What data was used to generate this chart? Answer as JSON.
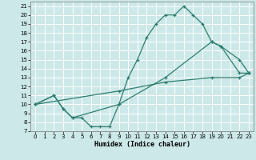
{
  "xlabel": "Humidex (Indice chaleur)",
  "background_color": "#cce8e8",
  "grid_color": "#ffffff",
  "line_color": "#2d7d6e",
  "xlim": [
    -0.5,
    23.5
  ],
  "ylim": [
    7,
    21.5
  ],
  "xticks": [
    0,
    1,
    2,
    3,
    4,
    5,
    6,
    7,
    8,
    9,
    10,
    11,
    12,
    13,
    14,
    15,
    16,
    17,
    18,
    19,
    20,
    21,
    22,
    23
  ],
  "yticks": [
    7,
    8,
    9,
    10,
    11,
    12,
    13,
    14,
    15,
    16,
    17,
    18,
    19,
    20,
    21
  ],
  "line1_x": [
    0,
    2,
    3,
    4,
    5,
    6,
    7,
    8,
    9,
    10,
    11,
    12,
    13,
    14,
    15,
    16,
    17,
    18,
    19,
    20,
    22,
    23
  ],
  "line1_y": [
    10,
    11,
    9.5,
    8.5,
    8.5,
    7.5,
    7.5,
    7.5,
    10,
    13,
    15,
    17.5,
    19,
    20,
    20,
    21,
    20,
    19,
    17,
    16.5,
    15,
    13.5
  ],
  "line2_x": [
    0,
    2,
    3,
    4,
    9,
    14,
    19,
    20,
    22,
    23
  ],
  "line2_y": [
    10,
    11,
    9.5,
    8.5,
    10,
    13,
    17,
    16.5,
    13.5,
    13.5
  ],
  "line3_x": [
    0,
    9,
    14,
    19,
    22,
    23
  ],
  "line3_y": [
    10,
    11.5,
    12.5,
    13,
    13,
    13.5
  ],
  "xlabel_fontsize": 6,
  "tick_fontsize": 5
}
